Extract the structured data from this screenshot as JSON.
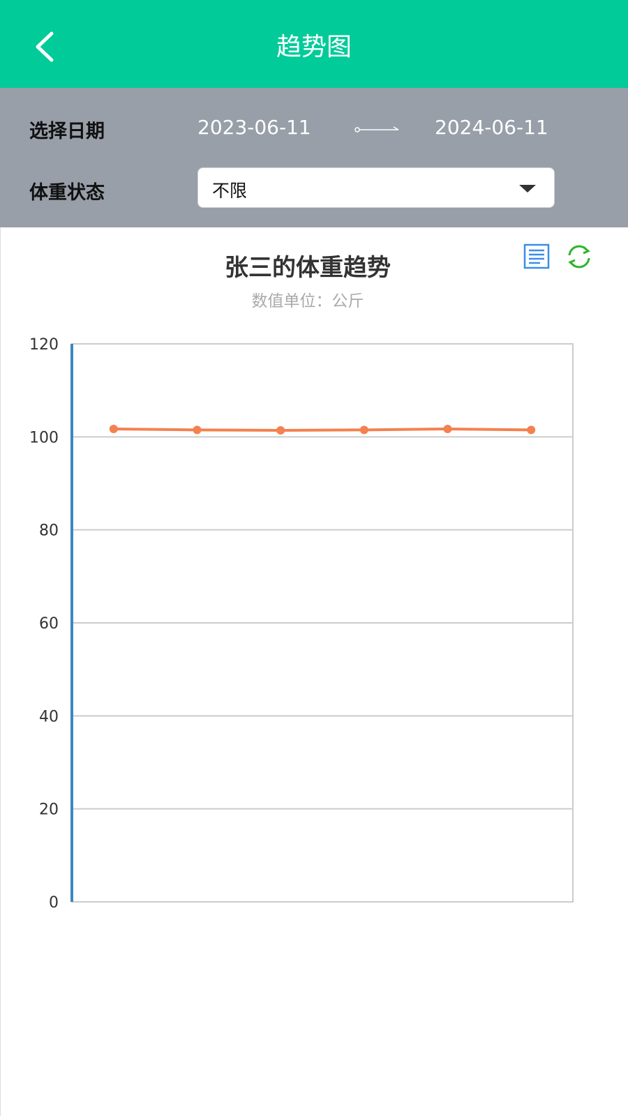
{
  "header": {
    "title": "趋势图",
    "back_icon": "chevron-left-icon"
  },
  "filters": {
    "date_label": "选择日期",
    "start_date": "2023-06-11",
    "end_date": "2024-06-11",
    "status_label": "体重状态",
    "status_value": "不限"
  },
  "colors": {
    "header": "#00cb99",
    "filter_bg": "#989fa9",
    "line": "#f4814f",
    "axis": "#3d87c0"
  },
  "toolbox": {
    "data_view_icon": "document-list-icon",
    "restore_icon": "refresh-icon"
  },
  "chart_data": {
    "type": "line",
    "title": "张三的体重趋势",
    "subtitle": "数值单位：公斤",
    "categories": [
      "",
      "",
      "",
      "",
      "",
      ""
    ],
    "series": [
      {
        "values": [
          101.7,
          101.5,
          101.4,
          101.5,
          101.7,
          101.5
        ],
        "color": "#f4814f"
      }
    ],
    "ylim": [
      0,
      120
    ],
    "yticks": [
      "0",
      "20",
      "40",
      "60",
      "80",
      "100",
      "120"
    ],
    "grid": true
  }
}
